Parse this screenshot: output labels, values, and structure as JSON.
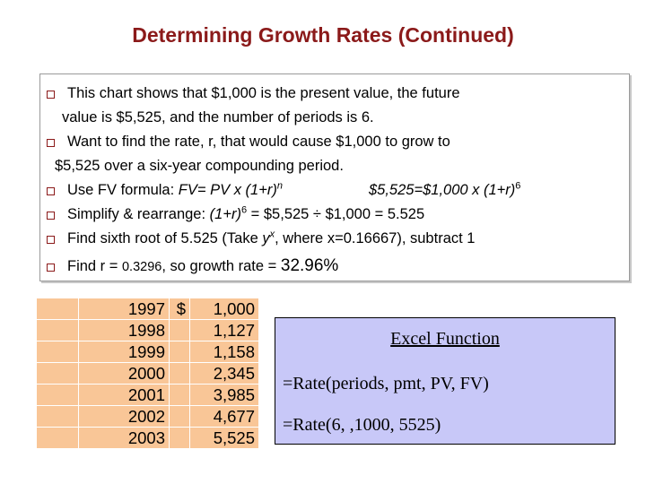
{
  "title": "Determining Growth Rates (Continued)",
  "bullets": {
    "b1_line1": "This chart shows that $1,000 is the present value, the future",
    "b1_line2": "value is $5,525, and the number of periods is 6.",
    "b2_line1": "Want to find the rate, r, that would cause $1,000 to grow to",
    "b2_line2": "$5,525 over a six-year compounding period.",
    "b3_prefix": "Use FV formula:  ",
    "b3_formula": "FV= PV x (1+r)",
    "b3_formula_exp": "n",
    "b3_example": "$5,525=$1,000 x (1+r)",
    "b3_example_exp": "6",
    "b4_prefix": "Simplify & rearrange:  ",
    "b4_formula": "(1+r)",
    "b4_formula_exp": "6",
    "b4_rest": " = $5,525 ÷ $1,000 = 5.525",
    "b5_prefix": "Find sixth root of 5.525 (Take ",
    "b5_y": "y",
    "b5_x": "x",
    "b5_rest": ", where x=0.16667), subtract 1",
    "b6_prefix": "Find r = ",
    "b6_rate": "0.3296",
    "b6_mid": ", so growth rate = ",
    "b6_pct": "32.96%"
  },
  "table": {
    "rows": [
      {
        "year": "1997",
        "dollar": "$",
        "value": "1,000"
      },
      {
        "year": "1998",
        "dollar": "",
        "value": "1,127"
      },
      {
        "year": "1999",
        "dollar": "",
        "value": "1,158"
      },
      {
        "year": "2000",
        "dollar": "",
        "value": "2,345"
      },
      {
        "year": "2001",
        "dollar": "",
        "value": "3,985"
      },
      {
        "year": "2002",
        "dollar": "",
        "value": "4,677"
      },
      {
        "year": "2003",
        "dollar": "",
        "value": "5,525"
      }
    ]
  },
  "excel": {
    "title": "Excel Function",
    "line1": "=Rate(periods, pmt, PV, FV)",
    "line2": "=Rate(6, ,1000, 5525)"
  },
  "colors": {
    "title": "#8b1a1a",
    "table_fill": "#f9c697",
    "excel_fill": "#c8c8f8"
  }
}
